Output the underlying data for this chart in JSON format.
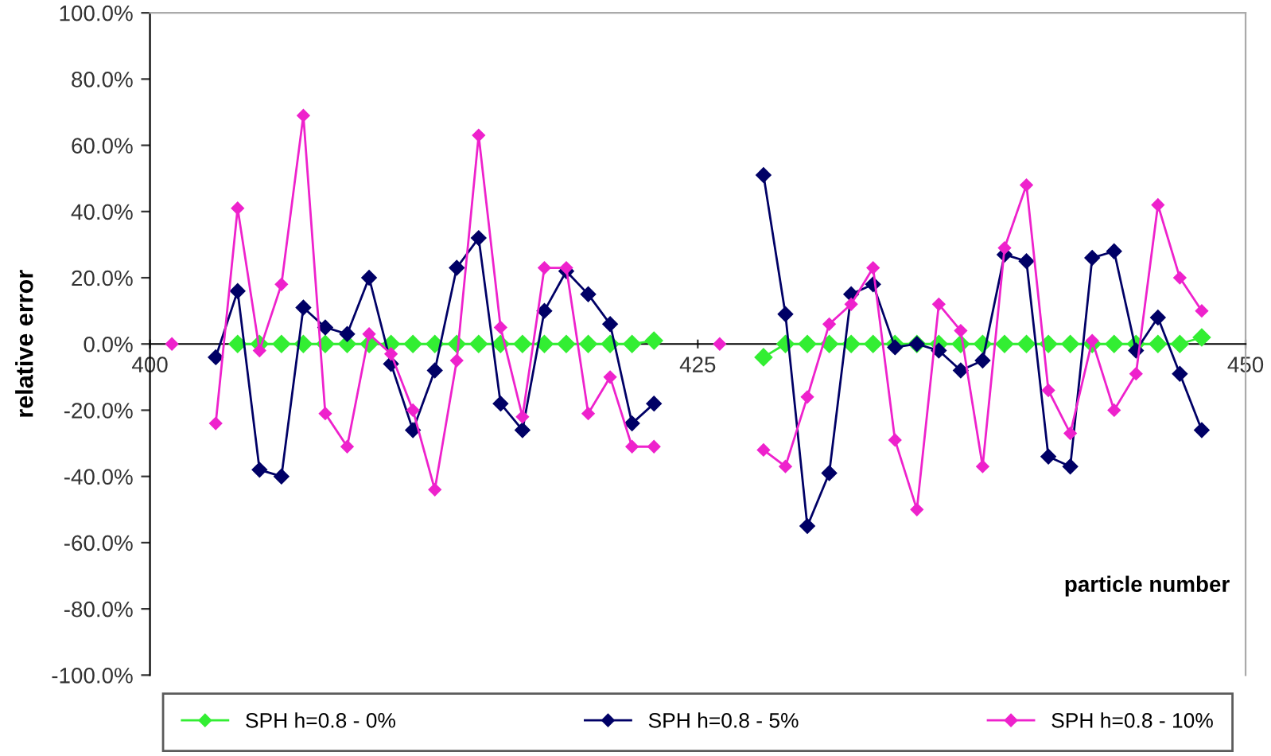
{
  "chart_data": {
    "type": "line",
    "xlabel": "particle number",
    "ylabel": "relative error",
    "x": [
      401,
      402,
      403,
      404,
      405,
      406,
      407,
      408,
      409,
      410,
      411,
      412,
      413,
      414,
      415,
      416,
      417,
      418,
      419,
      420,
      421,
      422,
      423,
      424,
      425,
      426,
      427,
      428,
      429,
      430,
      431,
      432,
      433,
      434,
      435,
      436,
      437,
      438,
      439,
      440,
      441,
      442,
      443,
      444,
      445,
      446,
      447,
      448
    ],
    "series": [
      {
        "name": "SPH h=0.8 - 0%",
        "color": "#33ee33",
        "values": [
          null,
          null,
          null,
          0,
          0,
          0,
          0,
          0,
          0,
          0,
          0,
          0,
          0,
          0,
          0,
          0,
          0,
          0,
          0,
          0,
          0,
          0,
          1,
          null,
          null,
          null,
          null,
          -4,
          0,
          0,
          0,
          0,
          0,
          0,
          0,
          0,
          0,
          0,
          0,
          0,
          0,
          0,
          0,
          0,
          0,
          0,
          0,
          2
        ]
      },
      {
        "name": "SPH h=0.8 - 5%",
        "color": "#000066",
        "values": [
          null,
          null,
          -4,
          16,
          -38,
          -40,
          11,
          5,
          3,
          20,
          -6,
          -26,
          -8,
          23,
          32,
          -18,
          -26,
          10,
          22,
          15,
          6,
          -24,
          -18,
          null,
          null,
          null,
          null,
          51,
          9,
          -55,
          -39,
          15,
          18,
          -1,
          0,
          -2,
          -8,
          -5,
          27,
          25,
          -34,
          -37,
          26,
          28,
          -2,
          8,
          -9,
          -26
        ]
      },
      {
        "name": "SPH h=0.8 - 10%",
        "color": "#ee22cc",
        "values": [
          0,
          null,
          -24,
          41,
          -2,
          18,
          69,
          -21,
          -31,
          3,
          -3,
          -20,
          -44,
          -5,
          63,
          5,
          -22,
          23,
          23,
          -21,
          -10,
          -31,
          -31,
          null,
          null,
          0,
          null,
          -32,
          -37,
          -16,
          6,
          12,
          23,
          -29,
          -50,
          12,
          4,
          -37,
          29,
          48,
          -14,
          -27,
          1,
          -20,
          -9,
          42,
          20,
          10
        ]
      }
    ],
    "xlim": [
      400,
      450
    ],
    "xticks": [
      400,
      425,
      450
    ],
    "ylim": [
      -100,
      100
    ],
    "yticks": [
      {
        "value": -100,
        "label": "-100.0%"
      },
      {
        "value": -80,
        "label": "-80.0%"
      },
      {
        "value": -60,
        "label": "-60.0%"
      },
      {
        "value": -40,
        "label": "-40.0%"
      },
      {
        "value": -20,
        "label": "-20.0%"
      },
      {
        "value": 0,
        "label": "0.0%"
      },
      {
        "value": 20,
        "label": "20.0%"
      },
      {
        "value": 40,
        "label": "40.0%"
      },
      {
        "value": 60,
        "label": "60.0%"
      },
      {
        "value": 80,
        "label": "80.0%"
      },
      {
        "value": 100,
        "label": "100.0%"
      }
    ],
    "marker": "diamond",
    "line_style": "solid",
    "grid": false,
    "legend": "bottom"
  }
}
